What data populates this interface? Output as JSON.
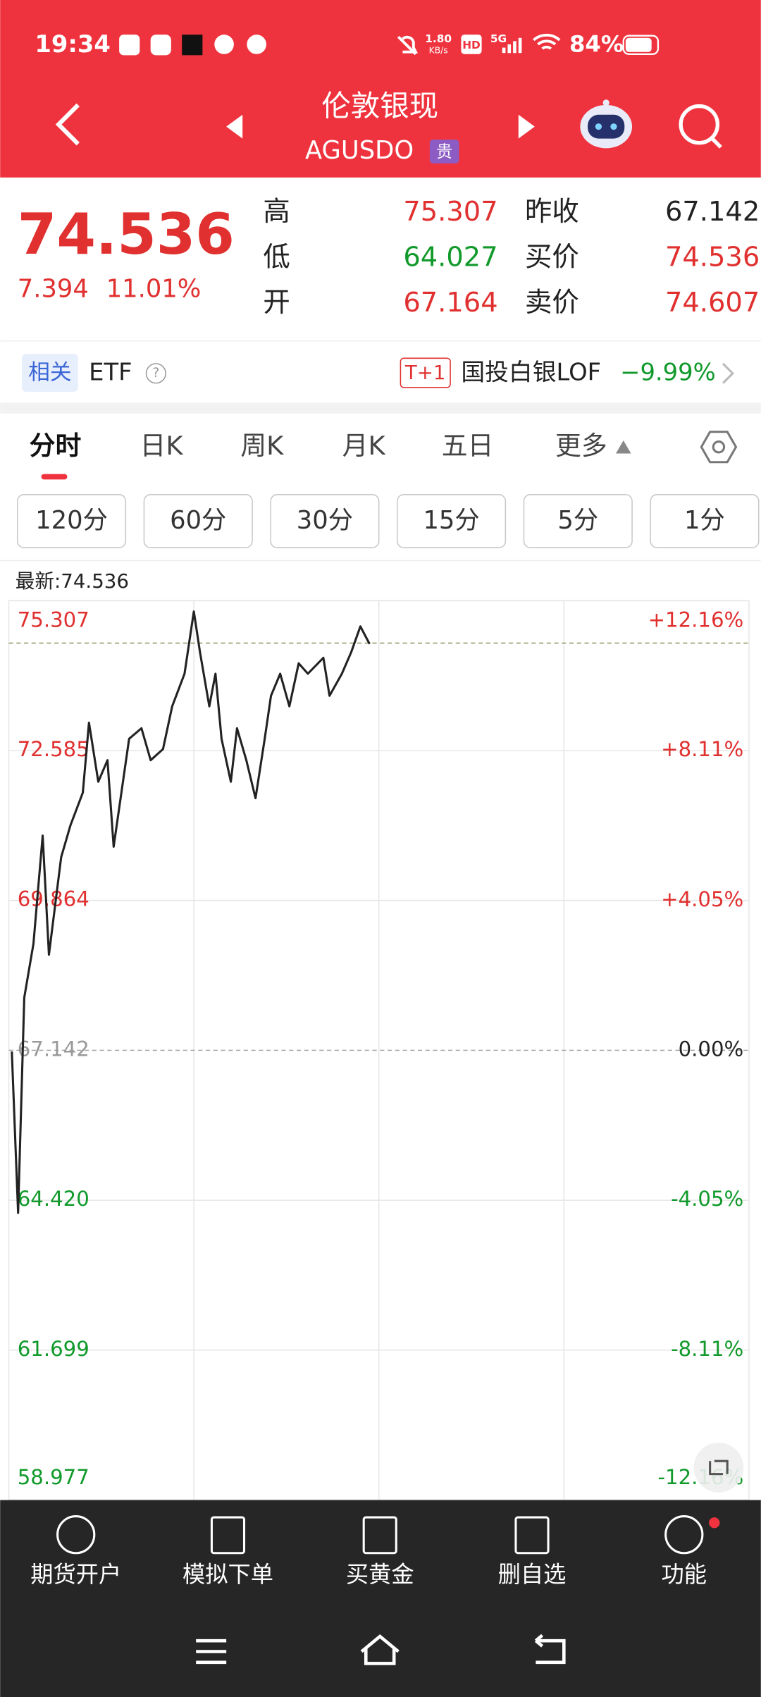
{
  "status_bar": {
    "time": "19:34",
    "net_speed": "1.80",
    "net_unit": "KB/s",
    "hd": "HD",
    "signal": "5G",
    "battery": "84%"
  },
  "header": {
    "title": "伦敦银现",
    "code": "AGUSDO",
    "badge": "贵"
  },
  "quote": {
    "price": "74.536",
    "change": "7.394",
    "change_pct": "11.01%",
    "color": "#e0302f",
    "fields": [
      {
        "label": "高",
        "value": "75.307",
        "color": "#e0302f"
      },
      {
        "label": "低",
        "value": "64.027",
        "color": "#119a2b"
      },
      {
        "label": "开",
        "value": "67.164",
        "color": "#e0302f"
      },
      {
        "label": "昨收",
        "value": "67.142",
        "color": "#222222"
      },
      {
        "label": "买价",
        "value": "74.536",
        "color": "#e0302f"
      },
      {
        "label": "卖价",
        "value": "74.607",
        "color": "#e0302f"
      }
    ]
  },
  "related": {
    "tag": "相关",
    "name": "ETF",
    "fund_badge": "T+1",
    "fund": "国投白银LOF",
    "fund_change": "−9.99%"
  },
  "tabs": [
    "分时",
    "日K",
    "周K",
    "月K",
    "五日",
    "更多"
  ],
  "intervals": [
    "120分",
    "60分",
    "30分",
    "15分",
    "5分",
    "1分"
  ],
  "chart": {
    "type": "line",
    "latest_label": "最新:",
    "latest": 74.536,
    "base": 67.142,
    "color": "#222222",
    "up_color": "#e0302f",
    "down_color": "#119a2b",
    "base_color": "#999999",
    "x": [
      1,
      3,
      5,
      8,
      11,
      13,
      17,
      20,
      24,
      26,
      29,
      32,
      34,
      37,
      39,
      43,
      46,
      50,
      53,
      57,
      60,
      62,
      65,
      67,
      69,
      72,
      74,
      77,
      80,
      83,
      85,
      88,
      91,
      94,
      97,
      102,
      104,
      108,
      111,
      114,
      117
    ],
    "values": [
      67.12,
      64.19,
      68.1,
      69.08,
      71.04,
      68.88,
      70.65,
      71.23,
      71.82,
      73.09,
      72.02,
      72.41,
      70.84,
      72.02,
      72.8,
      72.99,
      72.41,
      72.61,
      73.39,
      73.98,
      75.11,
      74.37,
      73.39,
      73.98,
      72.8,
      72.02,
      72.99,
      72.41,
      71.72,
      72.8,
      73.58,
      73.98,
      73.39,
      74.17,
      73.98,
      74.27,
      73.58,
      73.98,
      74.37,
      74.84,
      74.52
    ],
    "xlim": [
      0,
      240
    ],
    "xticks": [
      60,
      120,
      180
    ],
    "ylim": [
      58.977,
      75.307
    ],
    "yticks": [
      75.307,
      72.585,
      69.864,
      67.142,
      {
        "value": 64.42,
        "label": "64.420"
      },
      61.699,
      58.977
    ],
    "y2lim": [
      -12.16,
      12.16
    ],
    "y2ticks": [
      {
        "value": 12.16,
        "label": "+12.16%"
      },
      {
        "value": 8.11,
        "label": "+8.11%"
      },
      {
        "value": 4.05,
        "label": "+4.05%"
      },
      {
        "value": 0,
        "label": "0.00%"
      },
      {
        "value": -4.05,
        "label": "-4.05%"
      },
      {
        "value": -8.11,
        "label": "-8.11%"
      },
      {
        "value": -12.16,
        "label": "-12.16%"
      }
    ]
  },
  "nav": [
    "期货开户",
    "模拟下单",
    "买黄金",
    "删自选",
    "功能"
  ]
}
